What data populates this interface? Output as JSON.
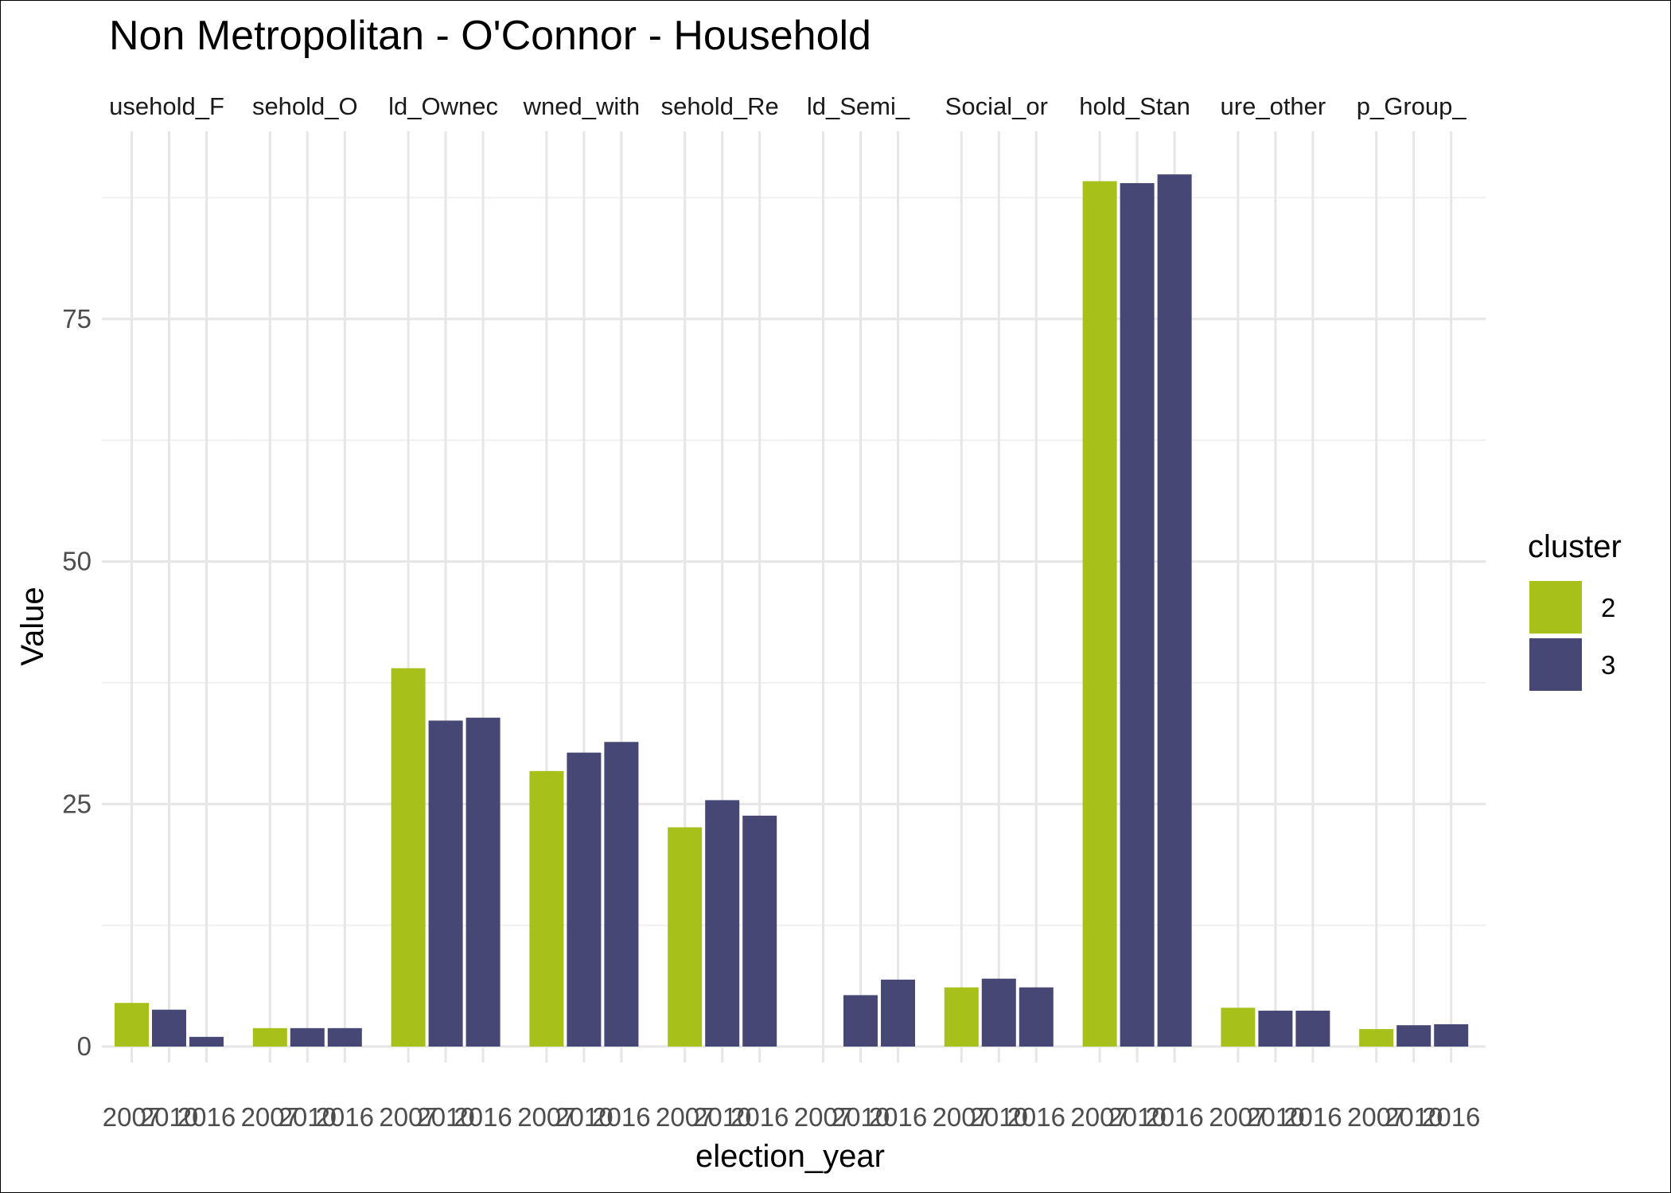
{
  "chart_data": {
    "type": "bar",
    "title": "Non Metropolitan - O'Connor - Household",
    "xlabel": "election_year",
    "ylabel": "Value",
    "ylim": [
      0,
      92
    ],
    "y_ticks": [
      0,
      25,
      50,
      75
    ],
    "grid": true,
    "legend": {
      "title": "cluster",
      "placement": "right",
      "entries": [
        {
          "name": "2",
          "color": "#a8c01a"
        },
        {
          "name": "3",
          "color": "#464774"
        }
      ]
    },
    "categories": [
      "2007",
      "2010",
      "2016"
    ],
    "facets": [
      {
        "label": "usehold_F",
        "values": [
          4.5,
          3.8,
          1.0
        ],
        "clusters": [
          "2",
          "3",
          "3"
        ]
      },
      {
        "label": "sehold_O",
        "values": [
          1.9,
          1.9,
          1.9
        ],
        "clusters": [
          "2",
          "3",
          "3"
        ]
      },
      {
        "label": "ld_Ownec",
        "values": [
          39.0,
          33.6,
          33.9
        ],
        "clusters": [
          "2",
          "3",
          "3"
        ]
      },
      {
        "label": "wned_with",
        "values": [
          28.4,
          30.3,
          31.4
        ],
        "clusters": [
          "2",
          "3",
          "3"
        ]
      },
      {
        "label": "sehold_Re",
        "values": [
          22.6,
          25.4,
          23.8
        ],
        "clusters": [
          "2",
          "3",
          "3"
        ]
      },
      {
        "label": "ld_Semi_",
        "values": [
          null,
          5.3,
          6.9
        ],
        "clusters": [
          "2",
          "3",
          "3"
        ]
      },
      {
        "label": "Social_or",
        "values": [
          6.1,
          7.0,
          6.1
        ],
        "clusters": [
          "2",
          "3",
          "3"
        ]
      },
      {
        "label": "hold_Stan",
        "values": [
          89.2,
          89.0,
          89.9
        ],
        "clusters": [
          "2",
          "3",
          "3"
        ]
      },
      {
        "label": "ure_other",
        "values": [
          4.0,
          3.7,
          3.7
        ],
        "clusters": [
          "2",
          "3",
          "3"
        ]
      },
      {
        "label": "p_Group_",
        "values": [
          1.8,
          2.2,
          2.3
        ],
        "clusters": [
          "2",
          "3",
          "3"
        ]
      }
    ]
  }
}
